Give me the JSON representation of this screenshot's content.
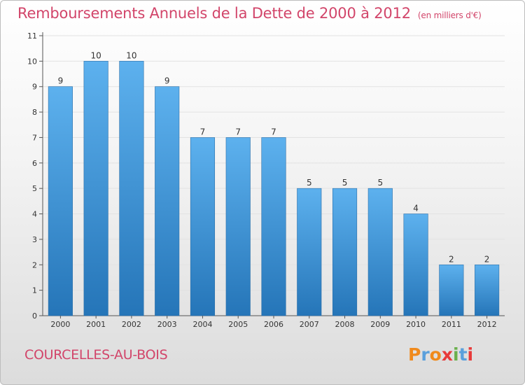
{
  "header": {
    "title": "Remboursements Annuels de la Dette de 2000 à 2012",
    "subtitle": "(en milliers d'€)"
  },
  "footer": {
    "city": "COURCELLES-AU-BOIS",
    "logo": {
      "letters": [
        "P",
        "r",
        "o",
        "x",
        "i",
        "t",
        "i"
      ],
      "colors": [
        "#f08a1c",
        "#5aa0dc",
        "#f08a1c",
        "#e83a3a",
        "#6ab04c",
        "#5aa0dc",
        "#e83a3a"
      ]
    }
  },
  "colors": {
    "title": "#d2456a",
    "bar_top": "#5db1ee",
    "bar_bottom": "#2575b8",
    "axis": "#555555",
    "grid": "#e2e2e2"
  },
  "chart_data": {
    "type": "bar",
    "categories": [
      "2000",
      "2001",
      "2002",
      "2003",
      "2004",
      "2005",
      "2006",
      "2007",
      "2008",
      "2009",
      "2010",
      "2011",
      "2012"
    ],
    "values": [
      9,
      10,
      10,
      9,
      7,
      7,
      7,
      5,
      5,
      5,
      4,
      2,
      2
    ],
    "title": "Remboursements Annuels de la Dette de 2000 à 2012",
    "subtitle": "(en milliers d'€)",
    "xlabel": "",
    "ylabel": "",
    "ylim": [
      0,
      11
    ],
    "yticks": [
      "0",
      "1",
      "2",
      "3",
      "4",
      "5",
      "6",
      "7",
      "8",
      "9",
      "10",
      "11"
    ],
    "data_labels": [
      "9",
      "10",
      "10",
      "9",
      "7",
      "7",
      "7",
      "5",
      "5",
      "5",
      "4",
      "2",
      "2"
    ],
    "grid": true,
    "legend": false
  }
}
